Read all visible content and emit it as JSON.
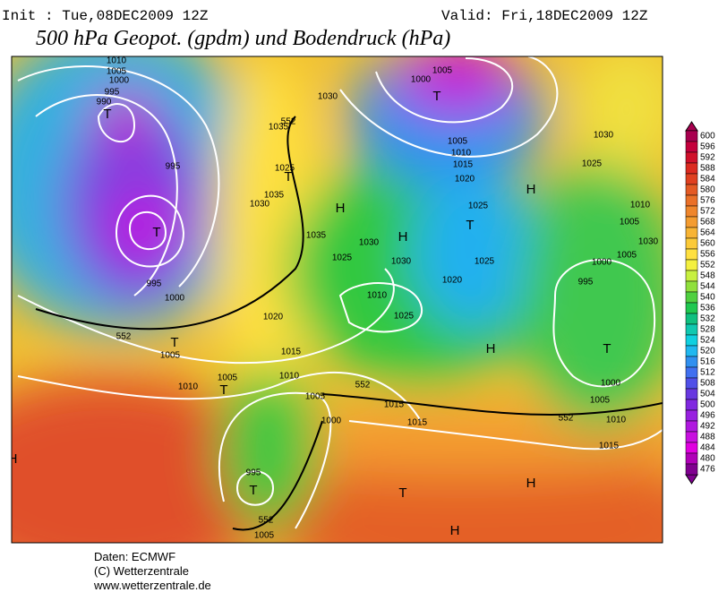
{
  "header": {
    "init": "Init : Tue,08DEC2009 12Z",
    "valid": "Valid: Fri,18DEC2009 12Z",
    "title": "500 hPa Geopot. (gpdm) und Bodendruck (hPa)"
  },
  "legend": {
    "values": [
      600,
      596,
      592,
      588,
      584,
      580,
      576,
      572,
      568,
      564,
      560,
      556,
      552,
      548,
      544,
      540,
      536,
      532,
      528,
      524,
      520,
      516,
      512,
      508,
      504,
      500,
      496,
      492,
      488,
      484,
      480,
      476
    ],
    "colors": [
      "#a8004f",
      "#c4003c",
      "#d0102a",
      "#dc2a20",
      "#e04020",
      "#e45a24",
      "#ea7028",
      "#ef862c",
      "#f49c30",
      "#f8b434",
      "#fcca38",
      "#ffe040",
      "#f4f040",
      "#c8f040",
      "#90e03c",
      "#50d040",
      "#20c850",
      "#10c080",
      "#10c8b0",
      "#10d0e0",
      "#20b8f0",
      "#3090f0",
      "#4070f0",
      "#5050e8",
      "#6838e0",
      "#8028e0",
      "#9820e0",
      "#b018e0",
      "#c810e0",
      "#e000e0",
      "#b000b8",
      "#800090"
    ]
  },
  "map_labels": {
    "systems": [
      "T",
      "T",
      "T",
      "T",
      "T",
      "T",
      "H",
      "H",
      "T",
      "H",
      "H",
      "T",
      "T",
      "H",
      "H",
      "H",
      "T"
    ],
    "isobars": [
      1010,
      1005,
      1000,
      995,
      990,
      995,
      995,
      1000,
      1005,
      1010,
      1005,
      1020,
      1015,
      1010,
      1005,
      1000,
      995,
      1005,
      1030,
      1035,
      1025,
      1035,
      1030,
      1035,
      1030,
      1025,
      1030,
      1010,
      1025,
      1015,
      1015,
      1020,
      1025,
      1025,
      1020,
      1015,
      1010,
      1005,
      1005,
      1000,
      1030,
      1025,
      1010,
      1005,
      1030,
      1005,
      1000,
      995,
      1000,
      1005,
      1010,
      1015,
      552,
      552,
      552,
      552,
      552
    ]
  },
  "footer": {
    "source": "Daten: ECMWF",
    "copyright": "(C) Wetterzentrale",
    "url": "www.wetterzentrale.de"
  }
}
